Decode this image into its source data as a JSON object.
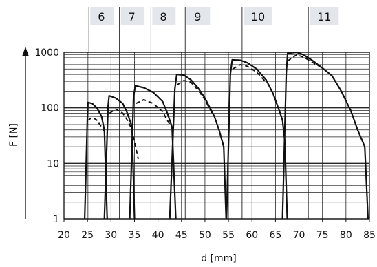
{
  "chart_data": {
    "type": "line",
    "title": "",
    "xlabel": "d [mm]",
    "ylabel": "F [N]",
    "xlim": [
      20,
      85
    ],
    "ylim": [
      1,
      1000
    ],
    "y_scale": "log",
    "grid": true,
    "x_ticks": [
      "20",
      "25",
      "30",
      "35",
      "40",
      "45",
      "50",
      "55",
      "60",
      "65",
      "70",
      "75",
      "80",
      "85"
    ],
    "y_ticks": [
      "1",
      "10",
      "100",
      "1000"
    ],
    "sizes": [
      {
        "label": "6",
        "marker_x": 25.3
      },
      {
        "label": "7",
        "marker_x": 31.8
      },
      {
        "label": "8",
        "marker_x": 38.5
      },
      {
        "label": "9",
        "marker_x": 45.8
      },
      {
        "label": "10",
        "marker_x": 57.9
      },
      {
        "label": "11",
        "marker_x": 72.0
      }
    ],
    "series": [
      {
        "style": "solid",
        "segments": [
          [
            [
              24.4,
              1
            ],
            [
              25.0,
              80
            ],
            [
              25.1,
              125
            ],
            [
              26.0,
              120
            ],
            [
              27.0,
              100
            ],
            [
              28.0,
              70
            ],
            [
              28.6,
              40
            ],
            [
              29.2,
              1
            ]
          ],
          [
            [
              28.6,
              1
            ],
            [
              29.4,
              110
            ],
            [
              29.6,
              165
            ],
            [
              31.0,
              150
            ],
            [
              32.5,
              120
            ],
            [
              33.5,
              80
            ],
            [
              34.5,
              45
            ],
            [
              35.0,
              1
            ]
          ],
          [
            [
              34.0,
              1
            ],
            [
              34.8,
              160
            ],
            [
              35.2,
              250
            ],
            [
              37.0,
              230
            ],
            [
              39.0,
              190
            ],
            [
              41.0,
              130
            ],
            [
              42.0,
              80
            ],
            [
              43.0,
              45
            ],
            [
              43.8,
              1
            ]
          ],
          [
            [
              42.5,
              1
            ],
            [
              43.6,
              220
            ],
            [
              44.0,
              400
            ],
            [
              45.5,
              390
            ],
            [
              47.0,
              320
            ],
            [
              48.5,
              230
            ],
            [
              50.0,
              150
            ],
            [
              52.0,
              70
            ],
            [
              53.0,
              40
            ],
            [
              54.0,
              20
            ],
            [
              54.5,
              1
            ]
          ],
          [
            [
              54.6,
              1
            ],
            [
              55.4,
              400
            ],
            [
              55.8,
              730
            ],
            [
              57.5,
              720
            ],
            [
              59.0,
              650
            ],
            [
              61.0,
              500
            ],
            [
              63.0,
              320
            ],
            [
              64.5,
              180
            ],
            [
              65.8,
              90
            ],
            [
              66.5,
              60
            ],
            [
              67.0,
              25
            ],
            [
              67.5,
              1
            ]
          ],
          [
            [
              66.5,
              1
            ],
            [
              67.3,
              420
            ],
            [
              67.6,
              960
            ],
            [
              69.5,
              1000
            ],
            [
              71.0,
              900
            ],
            [
              73.0,
              700
            ],
            [
              75.0,
              520
            ],
            [
              77.0,
              380
            ],
            [
              79.0,
              200
            ],
            [
              81.0,
              90
            ],
            [
              82.5,
              40
            ],
            [
              84.0,
              20
            ],
            [
              84.7,
              1
            ]
          ]
        ]
      },
      {
        "style": "dashed",
        "segments": [
          [
            [
              25.2,
              60
            ],
            [
              26.0,
              68
            ],
            [
              27.0,
              60
            ],
            [
              28.0,
              45
            ],
            [
              28.6,
              38
            ]
          ],
          [
            [
              29.7,
              80
            ],
            [
              31.0,
              95
            ],
            [
              32.5,
              80
            ],
            [
              33.5,
              60
            ],
            [
              34.2,
              45
            ],
            [
              35.0,
              25
            ],
            [
              35.8,
              12
            ]
          ],
          [
            [
              35.3,
              120
            ],
            [
              37.0,
              140
            ],
            [
              39.0,
              120
            ],
            [
              41.0,
              85
            ],
            [
              42.5,
              50
            ],
            [
              43.3,
              40
            ]
          ],
          [
            [
              44.1,
              260
            ],
            [
              45.5,
              310
            ],
            [
              47.0,
              290
            ],
            [
              48.5,
              210
            ],
            [
              50.0,
              140
            ],
            [
              51.5,
              80
            ]
          ],
          [
            [
              55.9,
              500
            ],
            [
              57.5,
              600
            ],
            [
              59.0,
              560
            ],
            [
              61.0,
              440
            ],
            [
              63.0,
              290
            ]
          ],
          [
            [
              67.6,
              700
            ],
            [
              69.5,
              900
            ],
            [
              71.0,
              820
            ],
            [
              73.0,
              650
            ],
            [
              75.0,
              520
            ]
          ]
        ]
      }
    ]
  }
}
